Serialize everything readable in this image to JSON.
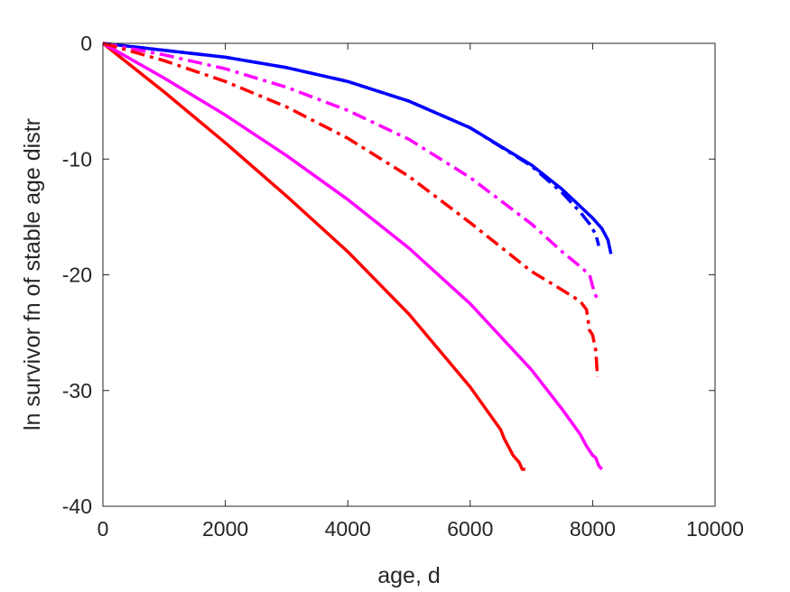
{
  "chart_data": {
    "type": "line",
    "title": "",
    "xlabel": "age, d",
    "ylabel": "ln survivor fn of stable age distr",
    "xlim": [
      0,
      10000
    ],
    "ylim": [
      -40,
      0
    ],
    "xticks": [
      0,
      2000,
      4000,
      6000,
      8000,
      10000
    ],
    "yticks": [
      0,
      -10,
      -20,
      -30,
      -40
    ],
    "xtick_labels": [
      "0",
      "2000",
      "4000",
      "6000",
      "8000",
      "10000"
    ],
    "ytick_labels": [
      "0",
      "-10",
      "-20",
      "-30",
      "-40"
    ],
    "grid": false,
    "legend": "none",
    "series": [
      {
        "color": "#ff0000",
        "style": "solid",
        "x": [
          0,
          1000,
          2000,
          3000,
          4000,
          5000,
          6000,
          6500,
          6550,
          6700,
          6800,
          6850,
          6900
        ],
        "y": [
          0,
          -4.2,
          -8.6,
          -13.2,
          -18.0,
          -23.4,
          -29.7,
          -33.4,
          -34.1,
          -35.6,
          -36.2,
          -36.8,
          -36.8
        ]
      },
      {
        "color": "#ff00ff",
        "style": "solid",
        "x": [
          0,
          1000,
          2000,
          3000,
          4000,
          5000,
          6000,
          7000,
          7500,
          7800,
          7900,
          8000,
          8050,
          8100,
          8150
        ],
        "y": [
          0,
          -3.0,
          -6.2,
          -9.7,
          -13.5,
          -17.7,
          -22.5,
          -28.2,
          -31.6,
          -33.8,
          -34.8,
          -35.6,
          -35.8,
          -36.5,
          -36.8
        ]
      },
      {
        "color": "#0000ff",
        "style": "solid",
        "x": [
          0,
          1000,
          2000,
          3000,
          4000,
          5000,
          6000,
          7000,
          7500,
          7800,
          8000,
          8150,
          8250,
          8300
        ],
        "y": [
          0,
          -0.6,
          -1.2,
          -2.1,
          -3.3,
          -5.0,
          -7.3,
          -10.5,
          -12.6,
          -14.1,
          -15.1,
          -16.0,
          -17.0,
          -18.2
        ]
      },
      {
        "color": "#0000ff",
        "style": "dashdot",
        "x": [
          0,
          1000,
          2000,
          3000,
          4000,
          5000,
          6000,
          7000,
          7500,
          7800,
          7950,
          8050,
          8100
        ],
        "y": [
          0,
          -0.6,
          -1.2,
          -2.1,
          -3.3,
          -5.0,
          -7.3,
          -10.6,
          -12.9,
          -14.6,
          -15.6,
          -16.5,
          -17.5
        ]
      },
      {
        "color": "#ff00ff",
        "style": "dashdot",
        "x": [
          0,
          1000,
          2000,
          3000,
          4000,
          5000,
          6000,
          7000,
          7500,
          7800,
          7950,
          8000,
          8050,
          8100
        ],
        "y": [
          0,
          -1.0,
          -2.2,
          -3.8,
          -5.8,
          -8.3,
          -11.6,
          -15.6,
          -18.0,
          -19.3,
          -20.0,
          -21.0,
          -21.8,
          -22.2
        ]
      },
      {
        "color": "#ff0000",
        "style": "dashdot",
        "x": [
          0,
          1000,
          2000,
          3000,
          4000,
          5000,
          6000,
          7000,
          7500,
          7800,
          7900,
          7950,
          8000,
          8050,
          8080
        ],
        "y": [
          0,
          -1.5,
          -3.3,
          -5.5,
          -8.2,
          -11.5,
          -15.5,
          -19.7,
          -21.3,
          -22.3,
          -23.0,
          -24.8,
          -25.2,
          -26.5,
          -28.8
        ]
      }
    ]
  }
}
